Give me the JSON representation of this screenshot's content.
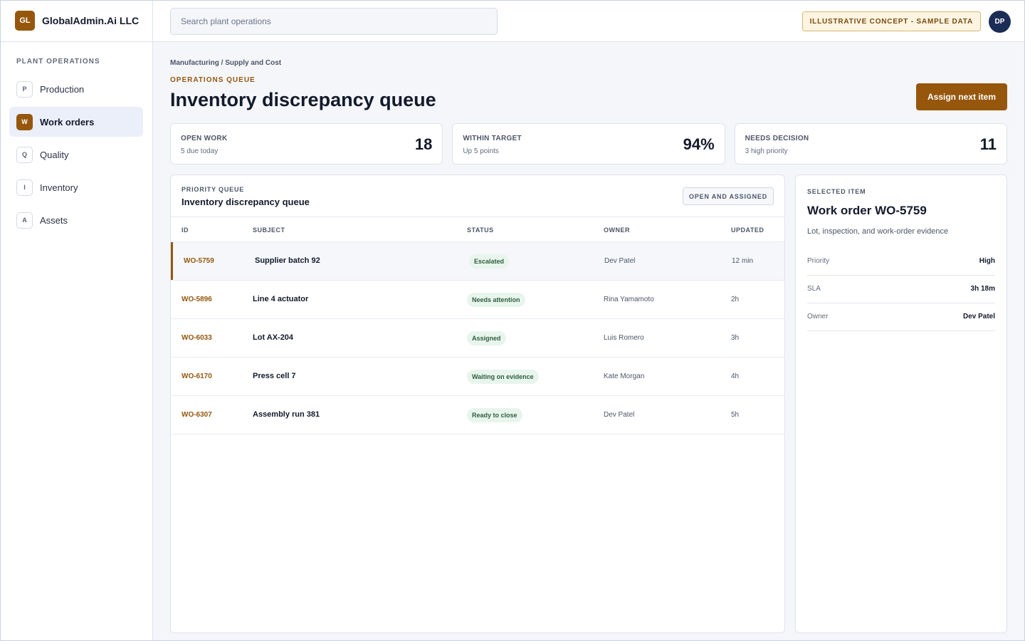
{
  "brand": {
    "logo_text": "GL",
    "name": "GlobalAdmin.Ai LLC"
  },
  "sidebar": {
    "heading": "PLANT OPERATIONS",
    "items": [
      {
        "badge": "P",
        "label": "Production"
      },
      {
        "badge": "W",
        "label": "Work orders",
        "active": true
      },
      {
        "badge": "Q",
        "label": "Quality"
      },
      {
        "badge": "I",
        "label": "Inventory"
      },
      {
        "badge": "A",
        "label": "Assets"
      }
    ]
  },
  "topbar": {
    "search_placeholder": "Search plant operations",
    "concept_badge": "ILLUSTRATIVE CONCEPT - SAMPLE DATA",
    "avatar_initials": "DP"
  },
  "page": {
    "breadcrumb": "Manufacturing / Supply and Cost",
    "eyebrow": "OPERATIONS QUEUE",
    "title": "Inventory discrepancy queue",
    "primary_action": "Assign next item"
  },
  "kpis": [
    {
      "label": "OPEN WORK",
      "sub": "5 due today",
      "value": "18"
    },
    {
      "label": "WITHIN TARGET",
      "sub": "Up 5 points",
      "value": "94%"
    },
    {
      "label": "NEEDS DECISION",
      "sub": "3 high priority",
      "value": "11"
    }
  ],
  "queue": {
    "eyebrow": "PRIORITY QUEUE",
    "title": "Inventory discrepancy queue",
    "filter": "OPEN AND ASSIGNED",
    "columns": {
      "id": "ID",
      "subject": "SUBJECT",
      "status": "STATUS",
      "owner": "OWNER",
      "updated": "UPDATED"
    },
    "rows": [
      {
        "id": "WO-5759",
        "subject": "Supplier batch 92",
        "status": "Escalated",
        "owner": "Dev Patel",
        "updated": "12 min"
      },
      {
        "id": "WO-5896",
        "subject": "Line 4 actuator",
        "status": "Needs attention",
        "owner": "Rina Yamamoto",
        "updated": "2h"
      },
      {
        "id": "WO-6033",
        "subject": "Lot AX-204",
        "status": "Assigned",
        "owner": "Luis Romero",
        "updated": "3h"
      },
      {
        "id": "WO-6170",
        "subject": "Press cell 7",
        "status": "Waiting on evidence",
        "owner": "Kate Morgan",
        "updated": "4h"
      },
      {
        "id": "WO-6307",
        "subject": "Assembly run 381",
        "status": "Ready to close",
        "owner": "Dev Patel",
        "updated": "5h"
      }
    ]
  },
  "detail": {
    "eyebrow": "SELECTED ITEM",
    "title": "Work order WO-5759",
    "subtitle": "Lot, inspection, and work-order evidence",
    "fields": [
      {
        "key": "Priority",
        "value": "High"
      },
      {
        "key": "SLA",
        "value": "3h 18m"
      },
      {
        "key": "Owner",
        "value": "Dev Patel"
      }
    ]
  },
  "colors": {
    "accent": "#96570d",
    "avatar_bg": "#1c2d55",
    "status_pill_bg": "#e8f5ec",
    "status_pill_text": "#2e5d3f",
    "concept_badge_bg": "#fdf5e1"
  }
}
